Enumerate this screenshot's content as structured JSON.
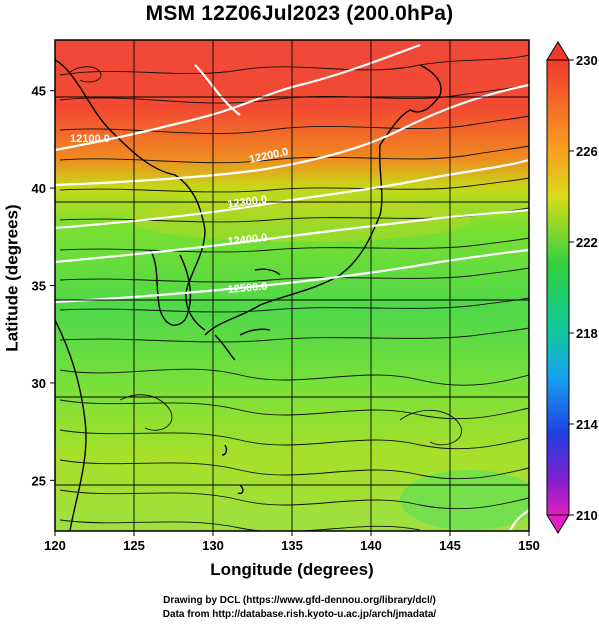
{
  "title": "MSM 12Z06Jul2023 (200.0hPa)",
  "map": {
    "xlabel": "Longitude (degrees)",
    "ylabel": "Latitude  (degrees)",
    "lon_range": [
      120,
      150
    ],
    "lat_range": [
      22.4,
      47.6
    ],
    "lon_ticks": [
      120,
      125,
      130,
      135,
      140,
      145,
      150
    ],
    "lat_ticks": [
      25,
      30,
      35,
      40,
      45
    ],
    "grid": true,
    "contour_labels": [
      {
        "text": "12100.0"
      },
      {
        "text": "12200.0"
      },
      {
        "text": "12300.0"
      },
      {
        "text": "12400.0"
      },
      {
        "text": "12500.0"
      }
    ]
  },
  "colorbar": {
    "min": 210,
    "max": 230,
    "labels": [
      "230",
      "226",
      "222",
      "218",
      "214",
      "210"
    ]
  },
  "credit": {
    "line1": "Drawing by DCL (https://www.gfd-dennou.org/library/dcl/)",
    "line2": "Data from http://database.rish.kyoto-u.ac.jp/arch/jmadata/"
  }
}
